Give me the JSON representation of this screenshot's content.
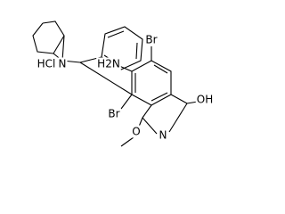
{
  "atoms": [
    {
      "label": "N"
    },
    {
      "label": "HCl"
    },
    {
      "label": "H2N"
    },
    {
      "label": "Br"
    },
    {
      "label": "Br"
    },
    {
      "label": "OH"
    },
    {
      "label": "N"
    },
    {
      "label": "O"
    }
  ]
}
